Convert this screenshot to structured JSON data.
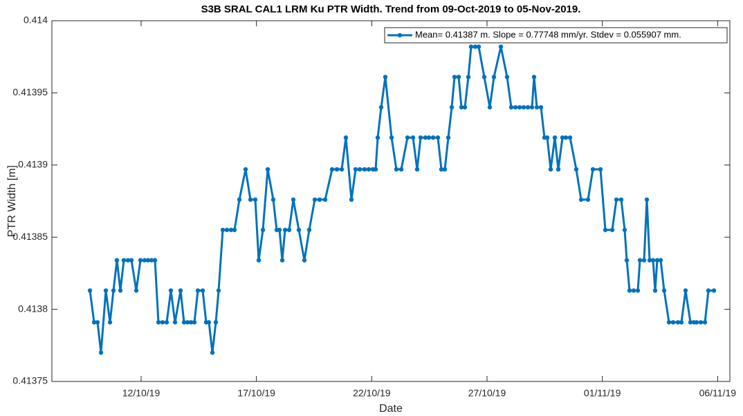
{
  "chart_data": {
    "type": "line",
    "title": "S3B SRAL CAL1 LRM Ku PTR Width. Trend from 09-Oct-2019 to 05-Nov-2019.",
    "xlabel": "Date",
    "ylabel": "PTR Width [m]",
    "x": [
      282.78,
      282.96,
      283.11,
      283.26,
      283.47,
      283.65,
      283.8,
      283.95,
      284.1,
      284.25,
      284.43,
      284.58,
      284.79,
      284.97,
      285.15,
      285.3,
      285.45,
      285.6,
      285.75,
      285.93,
      286.11,
      286.29,
      286.47,
      286.71,
      286.86,
      287.01,
      287.16,
      287.31,
      287.46,
      287.67,
      287.82,
      287.94,
      288.09,
      288.24,
      288.36,
      288.54,
      288.72,
      288.9,
      289.05,
      289.26,
      289.53,
      289.74,
      289.95,
      290.1,
      290.28,
      290.49,
      290.73,
      290.88,
      291.0,
      291.12,
      291.24,
      291.42,
      291.6,
      291.84,
      292.08,
      292.29,
      292.53,
      292.74,
      292.98,
      293.28,
      293.49,
      293.7,
      293.88,
      294.12,
      294.3,
      294.48,
      294.69,
      294.87,
      295.05,
      295.17,
      295.26,
      295.41,
      295.59,
      295.86,
      296.07,
      296.28,
      296.55,
      296.79,
      296.97,
      297.12,
      297.33,
      297.48,
      297.66,
      297.87,
      298.02,
      298.17,
      298.32,
      298.47,
      298.59,
      298.77,
      298.89,
      299.04,
      299.19,
      299.31,
      299.49,
      299.64,
      299.88,
      300.12,
      300.3,
      300.6,
      300.87,
      301.05,
      301.23,
      301.41,
      301.59,
      301.77,
      301.95,
      302.04,
      302.16,
      302.34,
      302.49,
      302.61,
      302.76,
      302.94,
      303.09,
      303.27,
      303.42,
      303.6,
      303.87,
      304.08,
      304.38,
      304.59,
      304.92,
      305.13,
      305.43,
      305.61,
      305.82,
      305.97,
      306.06,
      306.18,
      306.36,
      306.54,
      306.63,
      306.81,
      306.93,
      307.05,
      307.2,
      307.29,
      307.38,
      307.53,
      307.68,
      307.89,
      308.07,
      308.28,
      308.43,
      308.61,
      308.82,
      308.97,
      309.09,
      309.27,
      309.45,
      309.6,
      309.84
    ],
    "series": [
      {
        "name": "Mean= 0.41387 m. Slope = 0.77748 mm/yr. Stdev = 0.055907 mm.",
        "color": "#0072bd",
        "values": [
          0.413813,
          0.413791,
          0.413791,
          0.41377,
          0.413813,
          0.413791,
          0.413813,
          0.413834,
          0.413813,
          0.413834,
          0.413834,
          0.413834,
          0.413813,
          0.413834,
          0.413834,
          0.413834,
          0.413834,
          0.413834,
          0.413791,
          0.413791,
          0.413791,
          0.413813,
          0.413791,
          0.413813,
          0.413791,
          0.413791,
          0.413791,
          0.413791,
          0.413813,
          0.413813,
          0.413791,
          0.413791,
          0.41377,
          0.413791,
          0.413813,
          0.413855,
          0.413855,
          0.413855,
          0.413855,
          0.413876,
          0.413897,
          0.413876,
          0.413876,
          0.413834,
          0.413855,
          0.413897,
          0.413876,
          0.413855,
          0.413855,
          0.413834,
          0.413855,
          0.413855,
          0.413876,
          0.413855,
          0.413834,
          0.413855,
          0.413876,
          0.413876,
          0.413876,
          0.413897,
          0.413897,
          0.413897,
          0.413919,
          0.413876,
          0.413897,
          0.413897,
          0.413897,
          0.413897,
          0.413897,
          0.413897,
          0.413919,
          0.41394,
          0.413961,
          0.413919,
          0.413897,
          0.413897,
          0.413919,
          0.413919,
          0.413897,
          0.413919,
          0.413919,
          0.413919,
          0.413919,
          0.413919,
          0.413897,
          0.413897,
          0.413919,
          0.41394,
          0.413961,
          0.413961,
          0.41394,
          0.41394,
          0.413961,
          0.413982,
          0.413982,
          0.413982,
          0.413961,
          0.41394,
          0.413961,
          0.413982,
          0.413961,
          0.41394,
          0.41394,
          0.41394,
          0.41394,
          0.41394,
          0.41394,
          0.413961,
          0.41394,
          0.41394,
          0.413919,
          0.413919,
          0.413897,
          0.413919,
          0.413897,
          0.413919,
          0.413919,
          0.413919,
          0.413897,
          0.413876,
          0.413876,
          0.413897,
          0.413897,
          0.413855,
          0.413855,
          0.413876,
          0.413876,
          0.413855,
          0.413834,
          0.413813,
          0.413813,
          0.413813,
          0.413834,
          0.413834,
          0.413876,
          0.413834,
          0.413834,
          0.413813,
          0.413834,
          0.413834,
          0.413813,
          0.413791,
          0.413791,
          0.413791,
          0.413791,
          0.413813,
          0.413791,
          0.413791,
          0.413791,
          0.413791,
          0.413791,
          0.413813,
          0.413813
        ]
      }
    ],
    "xlim": [
      281.13,
      310.53
    ],
    "xticks": [
      {
        "value": 285,
        "label": "12/10/19"
      },
      {
        "value": 290,
        "label": "17/10/19"
      },
      {
        "value": 295,
        "label": "22/10/19"
      },
      {
        "value": 300,
        "label": "27/10/19"
      },
      {
        "value": 305,
        "label": "01/11/19"
      },
      {
        "value": 310,
        "label": "06/11/19"
      }
    ],
    "ylim": [
      0.41375,
      0.414
    ],
    "yticks": [
      0.41375,
      0.4138,
      0.41385,
      0.4139,
      0.41395,
      0.414
    ],
    "grid": false,
    "legend": "northeast"
  }
}
